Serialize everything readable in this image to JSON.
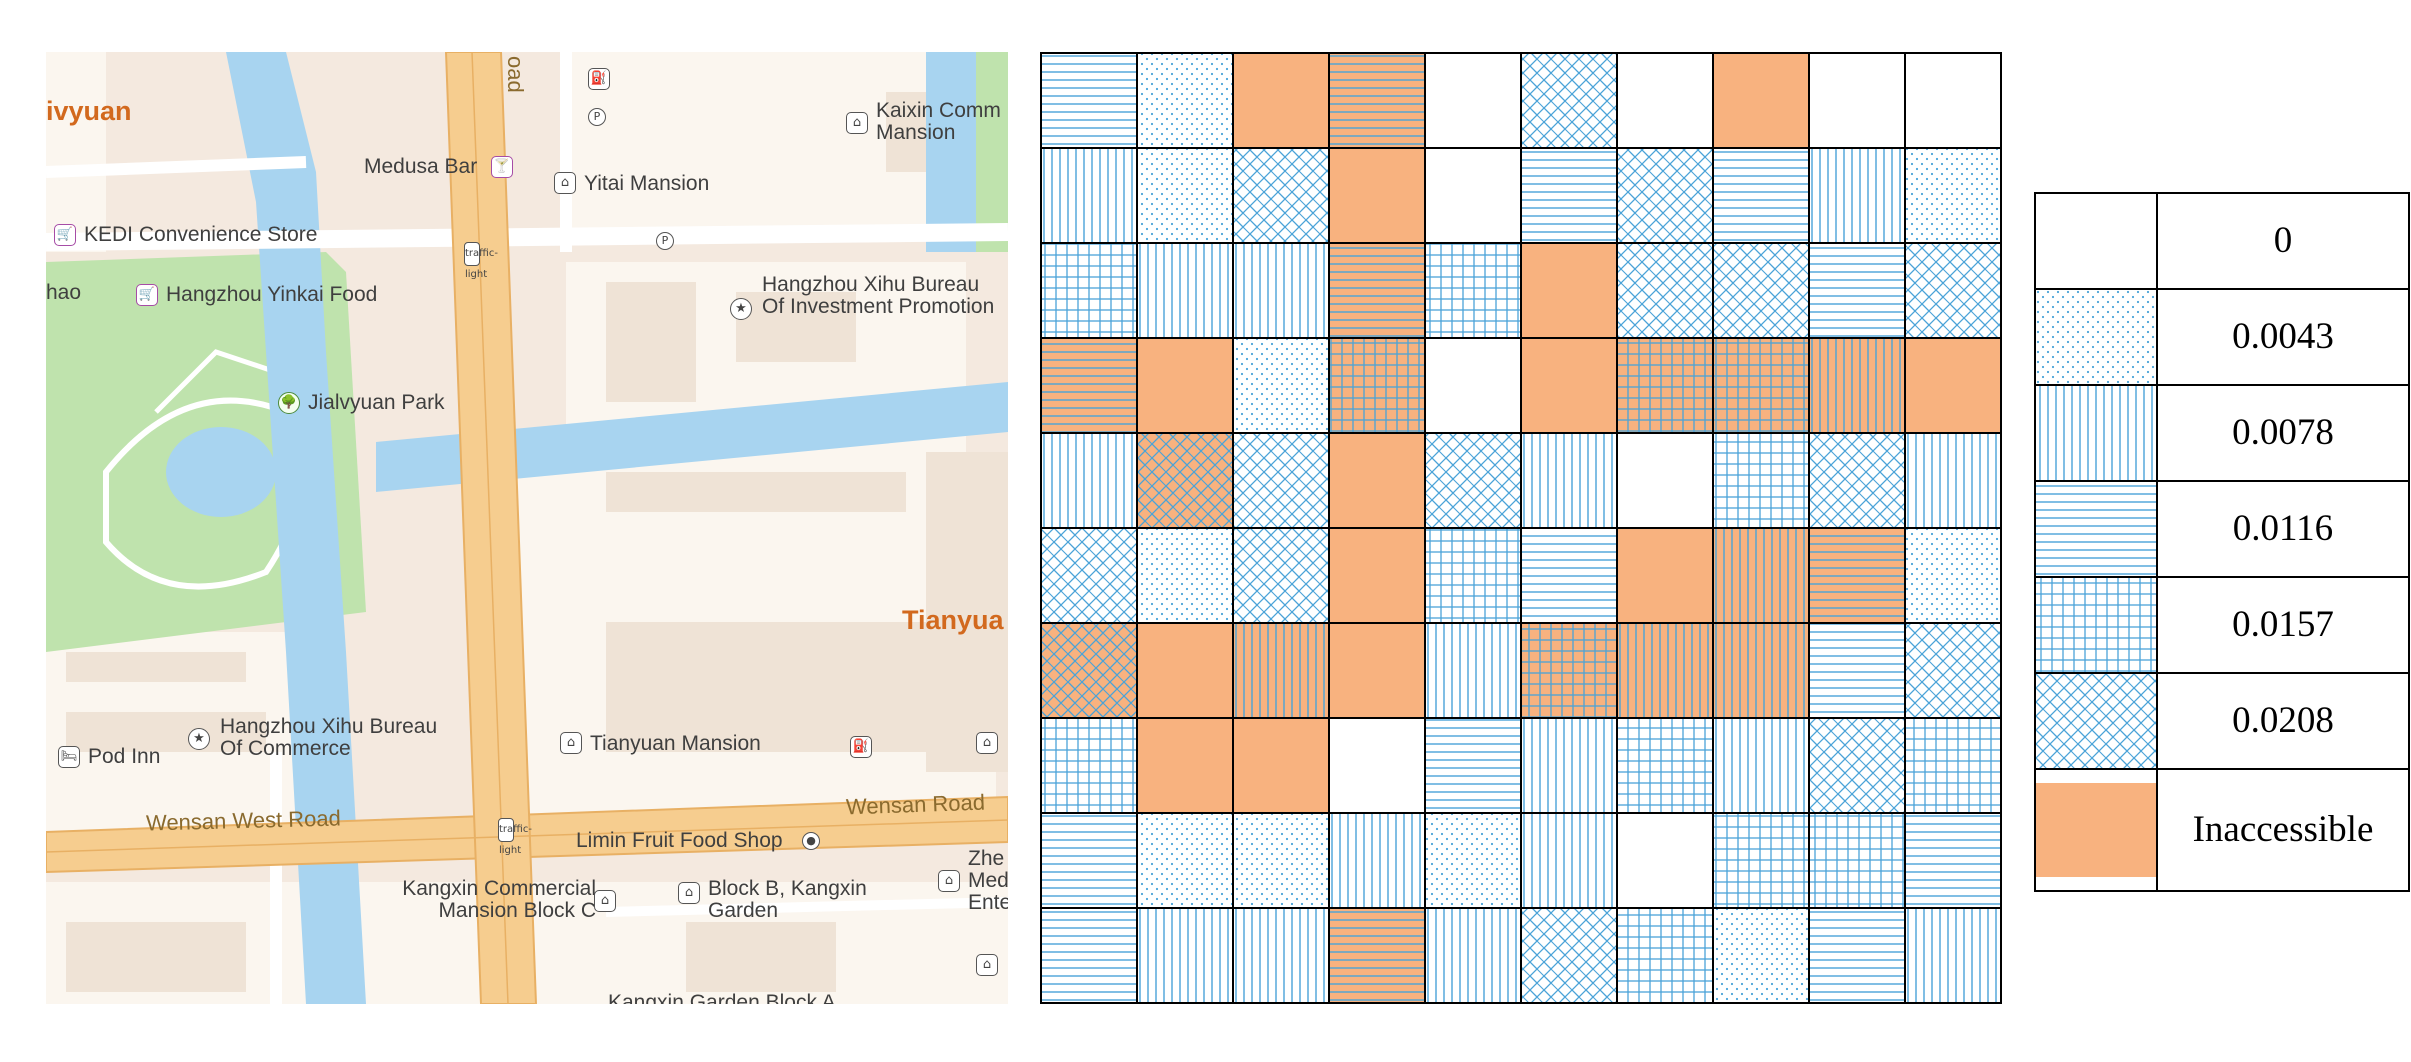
{
  "map": {
    "labels": {
      "district_left": "ivyuan",
      "district_right": "Tianyua",
      "road_vertical": "oad",
      "road_wensan_west": "Wensan West Road",
      "road_wensan": "Wensan Road",
      "medusa_bar": "Medusa Bar",
      "yitai_mansion": "Yitai Mansion",
      "kaixin_comm": "Kaixin Comm Mansion",
      "kedi_store": "KEDI Convenience Store",
      "hao_fragment": "hao",
      "yinkai_food": "Hangzhou Yinkai Food",
      "xihu_investment": "Hangzhou Xihu Bureau Of Investment Promotion",
      "jialvyuan_park": "Jialvyuan Park",
      "xihu_commerce": "Hangzhou Xihu Bureau Of Commerce",
      "pod_inn": "Pod Inn",
      "tianyuan_mansion": "Tianyuan Mansion",
      "limin_fruit": "Limin Fruit Food Shop",
      "kangxin_commercial": "Kangxin Commercial Mansion Block C",
      "block_b": "Block B, Kangxin Garden",
      "zhe_fragment": "Zhe Med Ente",
      "kangxin_block_a": "Kangxin Garden Block A"
    },
    "icons": {
      "parking": "P",
      "gas": "⛽",
      "building": "⌂",
      "shop": "🛒",
      "bar": "🍸",
      "government": "★",
      "park": "🌳",
      "hotel": "🛏",
      "traffic_light": "traffic-light",
      "shop_dot": "●"
    },
    "colors": {
      "background": "#f4e9df",
      "block": "#fbf6ef",
      "building": "#efe3d6",
      "water": "#a8d4f0",
      "park": "#bfe3ad",
      "main_road": "#f6cd8f",
      "main_road_edge": "#e8b064",
      "road": "#ffffff"
    }
  },
  "grid": {
    "rows": 10,
    "cols": 10,
    "cells": [
      [
        3,
        1,
        "X",
        "X3",
        0,
        5,
        0,
        "X",
        0,
        0
      ],
      [
        2,
        1,
        5,
        "X",
        0,
        3,
        5,
        3,
        2,
        1
      ],
      [
        4,
        2,
        2,
        "X3",
        4,
        "X",
        5,
        5,
        3,
        5
      ],
      [
        "X3",
        "X",
        1,
        "X4",
        0,
        "X",
        "X4",
        "X4",
        "X2",
        "X"
      ],
      [
        2,
        "X5",
        5,
        "X",
        5,
        2,
        0,
        4,
        5,
        2
      ],
      [
        5,
        1,
        5,
        "X",
        4,
        3,
        "X",
        "X2",
        "X3",
        1
      ],
      [
        "X5",
        "X",
        "X2",
        "X",
        2,
        "X4",
        "X2",
        "X2",
        3,
        5
      ],
      [
        4,
        "X",
        "X",
        0,
        3,
        2,
        4,
        2,
        5,
        4
      ],
      [
        3,
        1,
        1,
        2,
        1,
        2,
        0,
        4,
        4,
        3
      ],
      [
        3,
        2,
        2,
        "X3",
        2,
        5,
        4,
        1,
        3,
        2
      ]
    ]
  },
  "legend": {
    "items": [
      {
        "pattern": "none",
        "label": "0"
      },
      {
        "pattern": "dots",
        "label": "0.0043"
      },
      {
        "pattern": "vertical",
        "label": "0.0078"
      },
      {
        "pattern": "horizontal",
        "label": "0.0116"
      },
      {
        "pattern": "crosshatch",
        "label": "0.0157"
      },
      {
        "pattern": "diagonal",
        "label": "0.0208"
      },
      {
        "pattern": "inaccessible",
        "label": "Inaccessible"
      }
    ],
    "colors": {
      "hatch": "#4aa3d8",
      "inaccessible": "#f8b27f",
      "border": "#000000"
    }
  }
}
